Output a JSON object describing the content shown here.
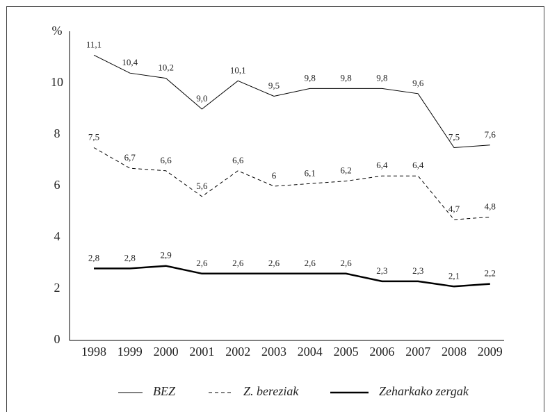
{
  "chart_data": {
    "type": "line",
    "ylabel": "%",
    "categories": [
      "1998",
      "1999",
      "2000",
      "2001",
      "2002",
      "2003",
      "2004",
      "2005",
      "2006",
      "2007",
      "2008",
      "2009"
    ],
    "series": [
      {
        "name": "BEZ",
        "color": "#000000",
        "line_style": "solid",
        "line_width": 1,
        "values": [
          11.1,
          10.4,
          10.2,
          9.0,
          10.1,
          9.5,
          9.8,
          9.8,
          9.8,
          9.6,
          7.5,
          7.6
        ],
        "value_labels": [
          "11,1",
          "10,4",
          "10,2",
          "9,0",
          "10,1",
          "9,5",
          "9,8",
          "9,8",
          "9,8",
          "9,6",
          "7,5",
          "7,6"
        ]
      },
      {
        "name": "Z. bereziak",
        "color": "#000000",
        "line_style": "dashed",
        "line_width": 1,
        "values": [
          7.5,
          6.7,
          6.6,
          5.6,
          6.6,
          6,
          6.1,
          6.2,
          6.4,
          6.4,
          4.7,
          4.8
        ],
        "value_labels": [
          "7,5",
          "6,7",
          "6,6",
          "5,6",
          "6,6",
          "6",
          "6,1",
          "6,2",
          "6,4",
          "6,4",
          "4,7",
          "4,8"
        ]
      },
      {
        "name": "Zeharkako zergak",
        "color": "#000000",
        "line_style": "solid",
        "line_width": 2.5,
        "values": [
          2.8,
          2.8,
          2.9,
          2.6,
          2.6,
          2.6,
          2.6,
          2.6,
          2.3,
          2.3,
          2.1,
          2.2
        ],
        "value_labels": [
          "2,8",
          "2,8",
          "2,9",
          "2,6",
          "2,6",
          "2,6",
          "2,6",
          "2,6",
          "2,3",
          "2,3",
          "2,1",
          "2,2"
        ]
      }
    ],
    "ylim": [
      0,
      12
    ],
    "yticks": [
      0,
      2,
      4,
      6,
      8,
      10
    ],
    "legend": "bottom"
  }
}
